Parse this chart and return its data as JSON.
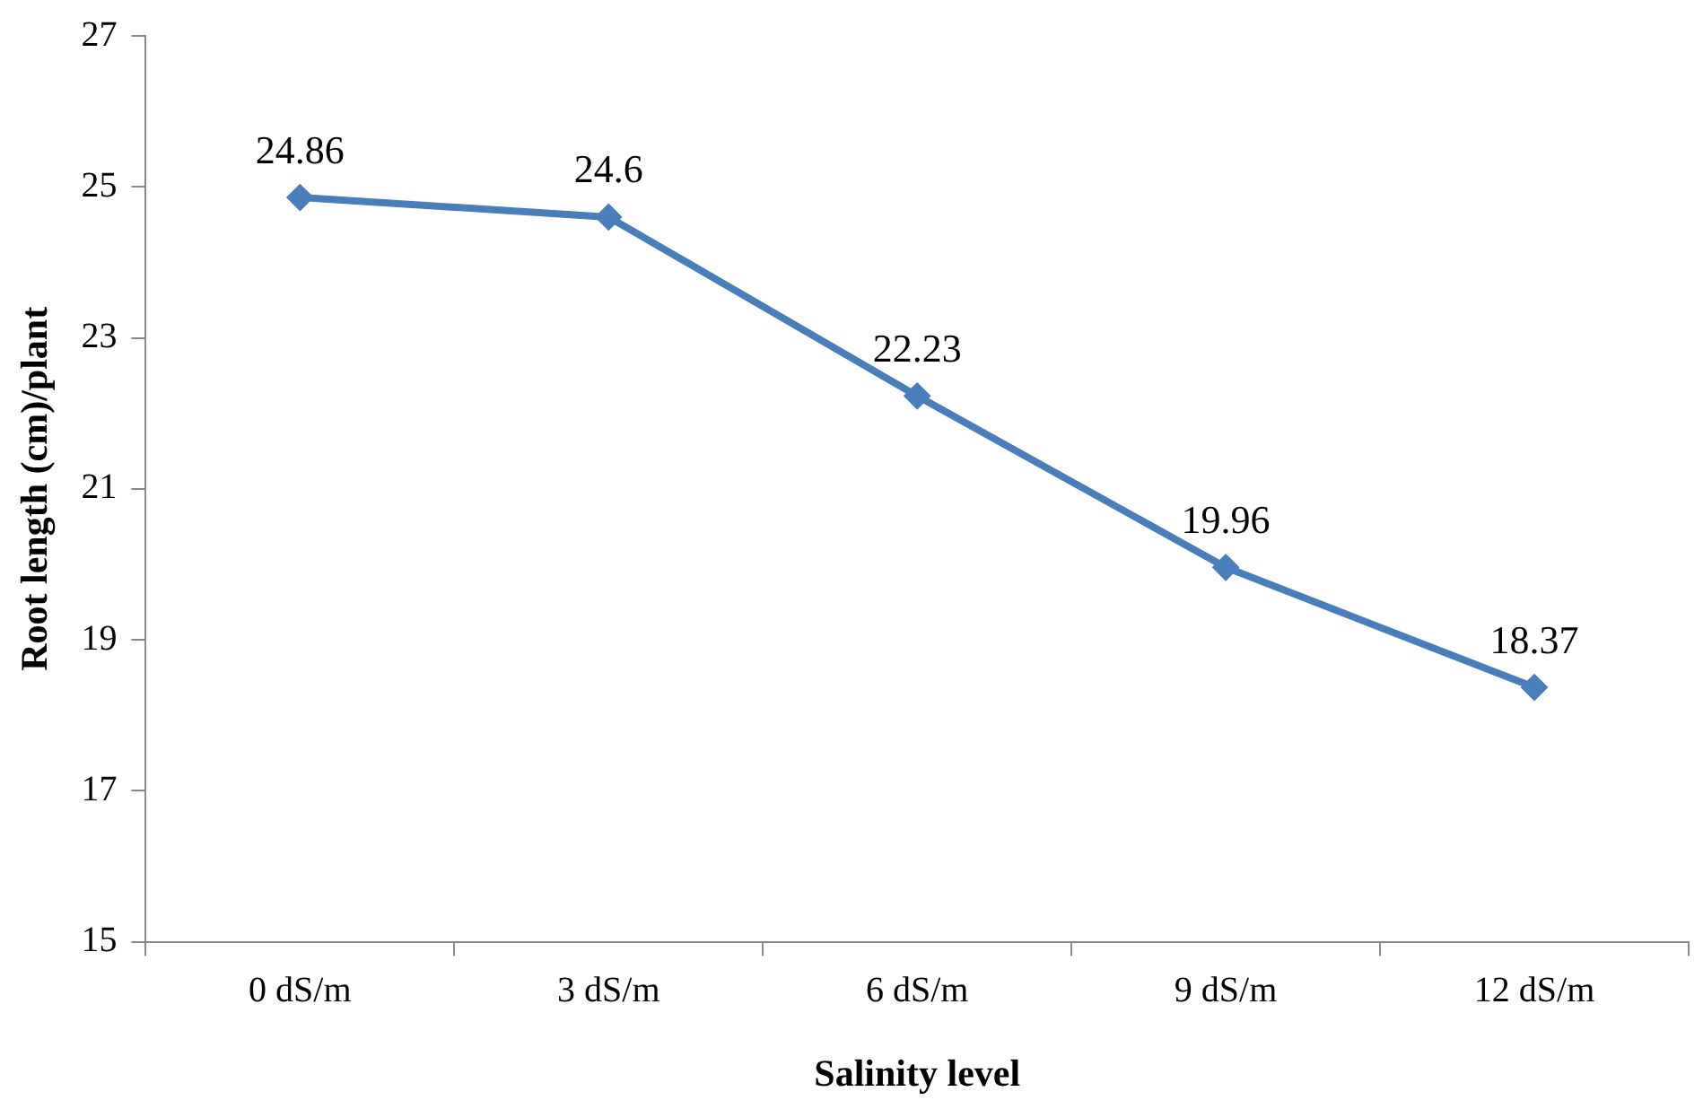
{
  "chart_data": {
    "type": "line",
    "xlabel": "Salinity level",
    "ylabel": "Root length (cm)/plant",
    "categories": [
      "0 dS/m",
      "3 dS/m",
      "6 dS/m",
      "9 dS/m",
      "12 dS/m"
    ],
    "series": [
      {
        "color": "#4a7ebb",
        "values": [
          24.86,
          24.6,
          22.23,
          19.96,
          18.37
        ]
      }
    ],
    "ylim": [
      15,
      27
    ],
    "yticks": [
      15,
      17,
      19,
      21,
      23,
      25,
      27
    ],
    "data_labels": true,
    "marker": "diamond",
    "line_style": "solid",
    "grid": false,
    "legend": false
  }
}
